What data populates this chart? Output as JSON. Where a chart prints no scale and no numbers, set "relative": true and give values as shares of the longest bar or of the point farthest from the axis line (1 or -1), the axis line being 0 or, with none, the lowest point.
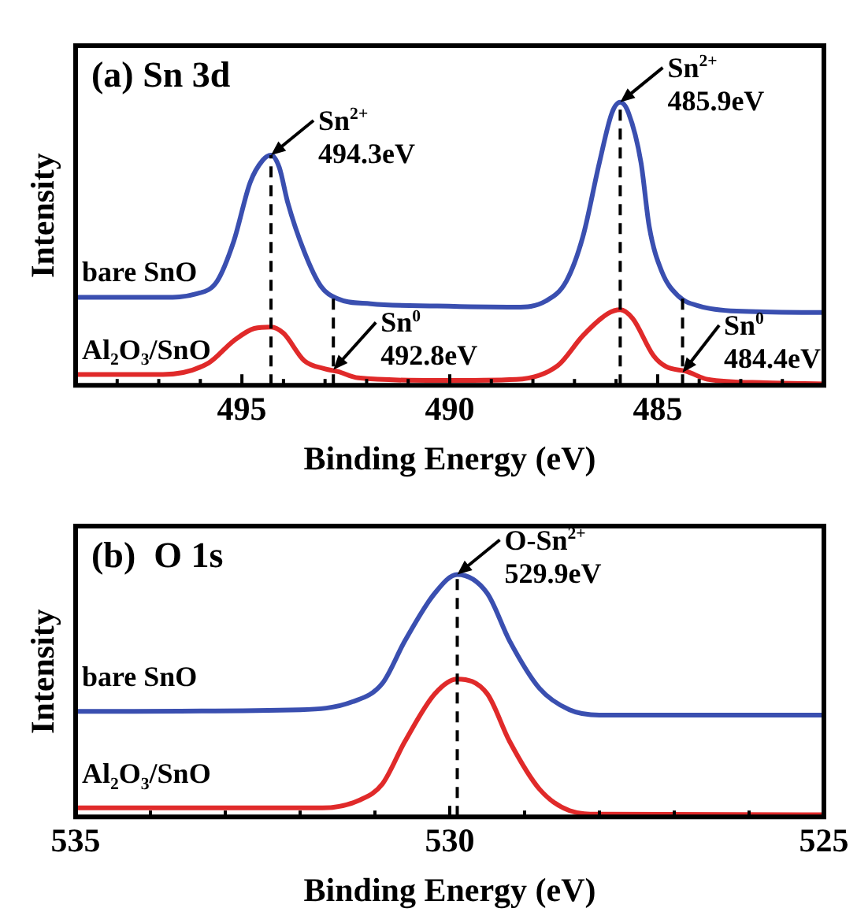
{
  "chart_data": [
    {
      "type": "line",
      "title": "(a) Sn 3d",
      "xlabel": "Binding Energy (eV)",
      "ylabel": "Intensity",
      "relative": true,
      "legend": false,
      "xlim": [
        499,
        481
      ],
      "xticks": [
        {
          "value": 498,
          "label": null
        },
        {
          "value": 497,
          "label": null
        },
        {
          "value": 496,
          "label": null
        },
        495,
        {
          "value": 494,
          "label": null
        },
        {
          "value": 493,
          "label": null
        },
        {
          "value": 492,
          "label": null
        },
        {
          "value": 491,
          "label": null
        },
        490,
        {
          "value": 489,
          "label": null
        },
        {
          "value": 488,
          "label": null
        },
        {
          "value": 487,
          "label": null
        },
        {
          "value": 486,
          "label": null
        },
        485,
        {
          "value": 484,
          "label": null
        },
        {
          "value": 483,
          "label": null
        },
        {
          "value": 482,
          "label": null
        }
      ],
      "series": [
        {
          "name": "bare SnO",
          "color": "#3a4fb0",
          "x": [
            499,
            496.9,
            496.1,
            495.6,
            495.2,
            494.8,
            494.5,
            494.3,
            494.1,
            493.9,
            493.5,
            493.1,
            492.7,
            491.9,
            490.3,
            488.4,
            487.7,
            487.2,
            486.8,
            486.4,
            486.1,
            485.9,
            485.7,
            485.4,
            485.2,
            484.9,
            484.5,
            484.0,
            483.1,
            481
          ],
          "values": [
            0.311,
            0.311,
            0.323,
            0.367,
            0.507,
            0.717,
            0.795,
            0.813,
            0.769,
            0.647,
            0.472,
            0.35,
            0.306,
            0.288,
            0.28,
            0.276,
            0.297,
            0.367,
            0.524,
            0.787,
            0.962,
            1,
            0.962,
            0.787,
            0.559,
            0.402,
            0.315,
            0.28,
            0.262,
            0.257
          ]
        },
        {
          "name": "Al$_{2}$O$_{3}$/SnO",
          "color": "#e02a2a",
          "x": [
            499,
            496.9,
            495.8,
            495.2,
            494.7,
            494.3,
            494.0,
            493.5,
            493.0,
            492.7,
            492.2,
            490.3,
            488.4,
            487.4,
            486.8,
            486.2,
            485.9,
            485.6,
            485.1,
            484.8,
            484.3,
            483.8,
            482.4,
            481
          ],
          "values": [
            0.038,
            0.038,
            0.079,
            0.157,
            0.201,
            0.206,
            0.184,
            0.087,
            0.058,
            0.049,
            0.026,
            0.017,
            0.021,
            0.07,
            0.175,
            0.253,
            0.267,
            0.236,
            0.105,
            0.066,
            0.049,
            0.021,
            0.009,
            0.005
          ]
        }
      ],
      "ref_lines": [
        {
          "axis": "x",
          "value": 494.3,
          "color": "#000000",
          "line_style": "dashed"
        },
        {
          "axis": "x",
          "value": 492.8,
          "color": "#000000",
          "line_style": "dashed"
        },
        {
          "axis": "x",
          "value": 485.9,
          "color": "#000000",
          "line_style": "dashed"
        },
        {
          "axis": "x",
          "value": 484.4,
          "color": "#000000",
          "line_style": "dashed"
        }
      ],
      "annotations": [
        {
          "text": "Sn$^{2+}$\n494.3eV",
          "x": 494.3,
          "y": 0.813
        },
        {
          "text": "Sn$^{0}$\n492.8eV",
          "x": 492.8,
          "y": 0.055
        },
        {
          "text": "Sn$^{2+}$\n485.9eV",
          "x": 485.9,
          "y": 1
        },
        {
          "text": "Sn$^{0}$\n484.4eV",
          "x": 484.4,
          "y": 0.045
        }
      ]
    },
    {
      "type": "line",
      "title": "(b)  O 1s",
      "xlabel": "Binding Energy (eV)",
      "ylabel": "Intensity",
      "relative": true,
      "legend": false,
      "xlim": [
        535,
        525
      ],
      "xticks": [
        535,
        {
          "value": 534,
          "label": null
        },
        {
          "value": 533,
          "label": null
        },
        {
          "value": 532,
          "label": null
        },
        {
          "value": 531,
          "label": null
        },
        530,
        {
          "value": 529,
          "label": null
        },
        {
          "value": 528,
          "label": null
        },
        {
          "value": 527,
          "label": null
        },
        {
          "value": 526,
          "label": null
        },
        525
      ],
      "series": [
        {
          "name": "bare SnO",
          "color": "#3a4fb0",
          "x": [
            535,
            532.0,
            531.3,
            530.9,
            530.6,
            530.2,
            529.9,
            529.5,
            529.2,
            528.8,
            528.4,
            528.0,
            525
          ],
          "values": [
            0.435,
            0.442,
            0.475,
            0.551,
            0.726,
            0.923,
            1,
            0.923,
            0.726,
            0.53,
            0.442,
            0.42,
            0.42
          ]
        },
        {
          "name": "Al$_{2}$O$_{3}$/SnO",
          "color": "#e02a2a",
          "x": [
            535,
            531.7,
            531.2,
            530.9,
            530.6,
            530.2,
            529.9,
            529.5,
            529.2,
            528.8,
            528.4,
            528.0,
            525
          ],
          "values": [
            0.037,
            0.037,
            0.07,
            0.136,
            0.311,
            0.508,
            0.569,
            0.508,
            0.311,
            0.114,
            0.026,
            0.011,
            0.009
          ]
        }
      ],
      "ref_lines": [
        {
          "axis": "x",
          "value": 529.9,
          "color": "#000000",
          "line_style": "dashed"
        }
      ],
      "annotations": [
        {
          "text": "O-Sn$^{2+}$\n529.9eV",
          "x": 529.9,
          "y": 1
        }
      ]
    }
  ]
}
